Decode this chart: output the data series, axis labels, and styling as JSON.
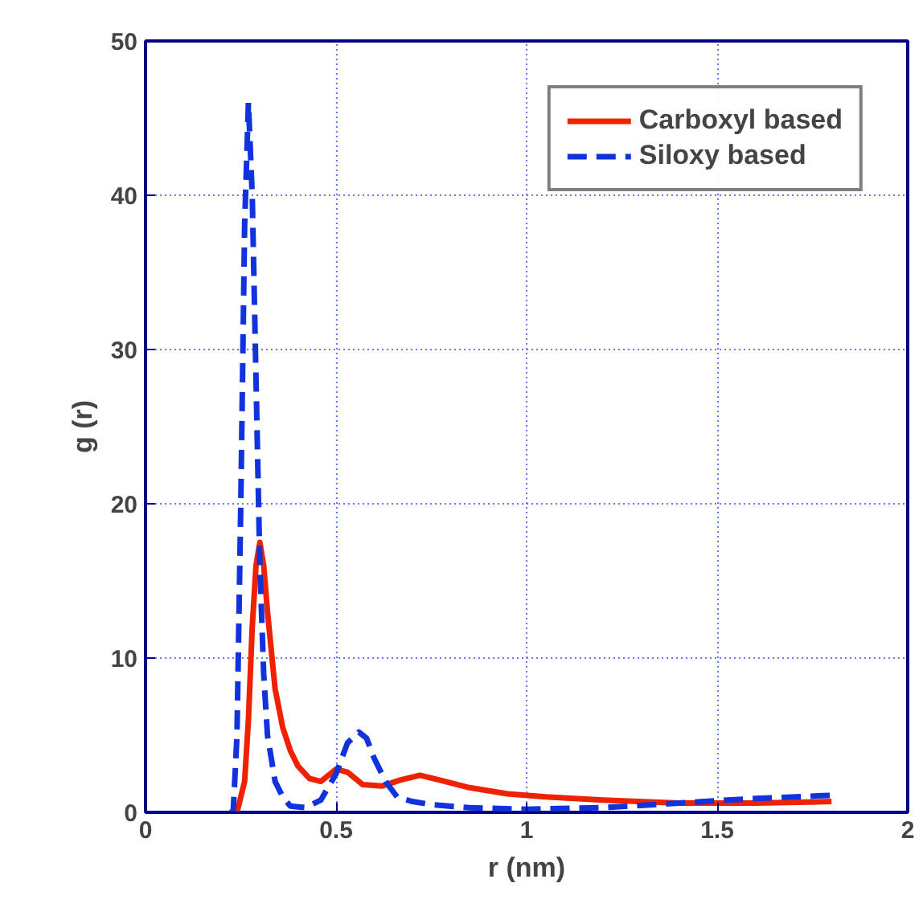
{
  "chart_data": {
    "type": "line",
    "xlabel": "r (nm)",
    "ylabel": "g (r)",
    "xlim": [
      0,
      2
    ],
    "ylim": [
      0,
      50
    ],
    "xticks": [
      0,
      0.5,
      1,
      1.5,
      2
    ],
    "yticks": [
      0,
      10,
      20,
      30,
      40,
      50
    ],
    "grid": true,
    "legend": "top right",
    "marker": "none",
    "series": [
      {
        "name": "Carboxyl based",
        "color": "#ee2200",
        "line_style": "solid",
        "x": [
          0.24,
          0.26,
          0.27,
          0.28,
          0.29,
          0.3,
          0.31,
          0.32,
          0.34,
          0.36,
          0.38,
          0.4,
          0.43,
          0.46,
          0.5,
          0.53,
          0.57,
          0.62,
          0.67,
          0.72,
          0.77,
          0.85,
          0.95,
          1.05,
          1.2,
          1.4,
          1.6,
          1.8
        ],
        "values": [
          0,
          2,
          6,
          12,
          16,
          17.5,
          16,
          13,
          8,
          5.5,
          4,
          3,
          2.2,
          2,
          2.8,
          2.6,
          1.8,
          1.7,
          2.1,
          2.4,
          2.1,
          1.6,
          1.2,
          1,
          0.8,
          0.6,
          0.6,
          0.7
        ]
      },
      {
        "name": "Siloxy based",
        "color": "#1133dd",
        "line_style": "dashed",
        "x": [
          0.22,
          0.23,
          0.24,
          0.25,
          0.26,
          0.27,
          0.28,
          0.29,
          0.3,
          0.31,
          0.32,
          0.34,
          0.36,
          0.38,
          0.42,
          0.46,
          0.5,
          0.53,
          0.56,
          0.58,
          0.6,
          0.63,
          0.66,
          0.7,
          0.75,
          0.85,
          1.0,
          1.2,
          1.4,
          1.6,
          1.8
        ],
        "values": [
          0,
          0,
          5,
          20,
          38,
          46,
          40,
          28,
          16,
          9,
          5,
          2,
          1,
          0.4,
          0.3,
          0.8,
          2.5,
          4.5,
          5.2,
          4.8,
          3.5,
          2,
          1,
          0.7,
          0.5,
          0.3,
          0.2,
          0.3,
          0.6,
          0.9,
          1.1
        ]
      }
    ]
  }
}
